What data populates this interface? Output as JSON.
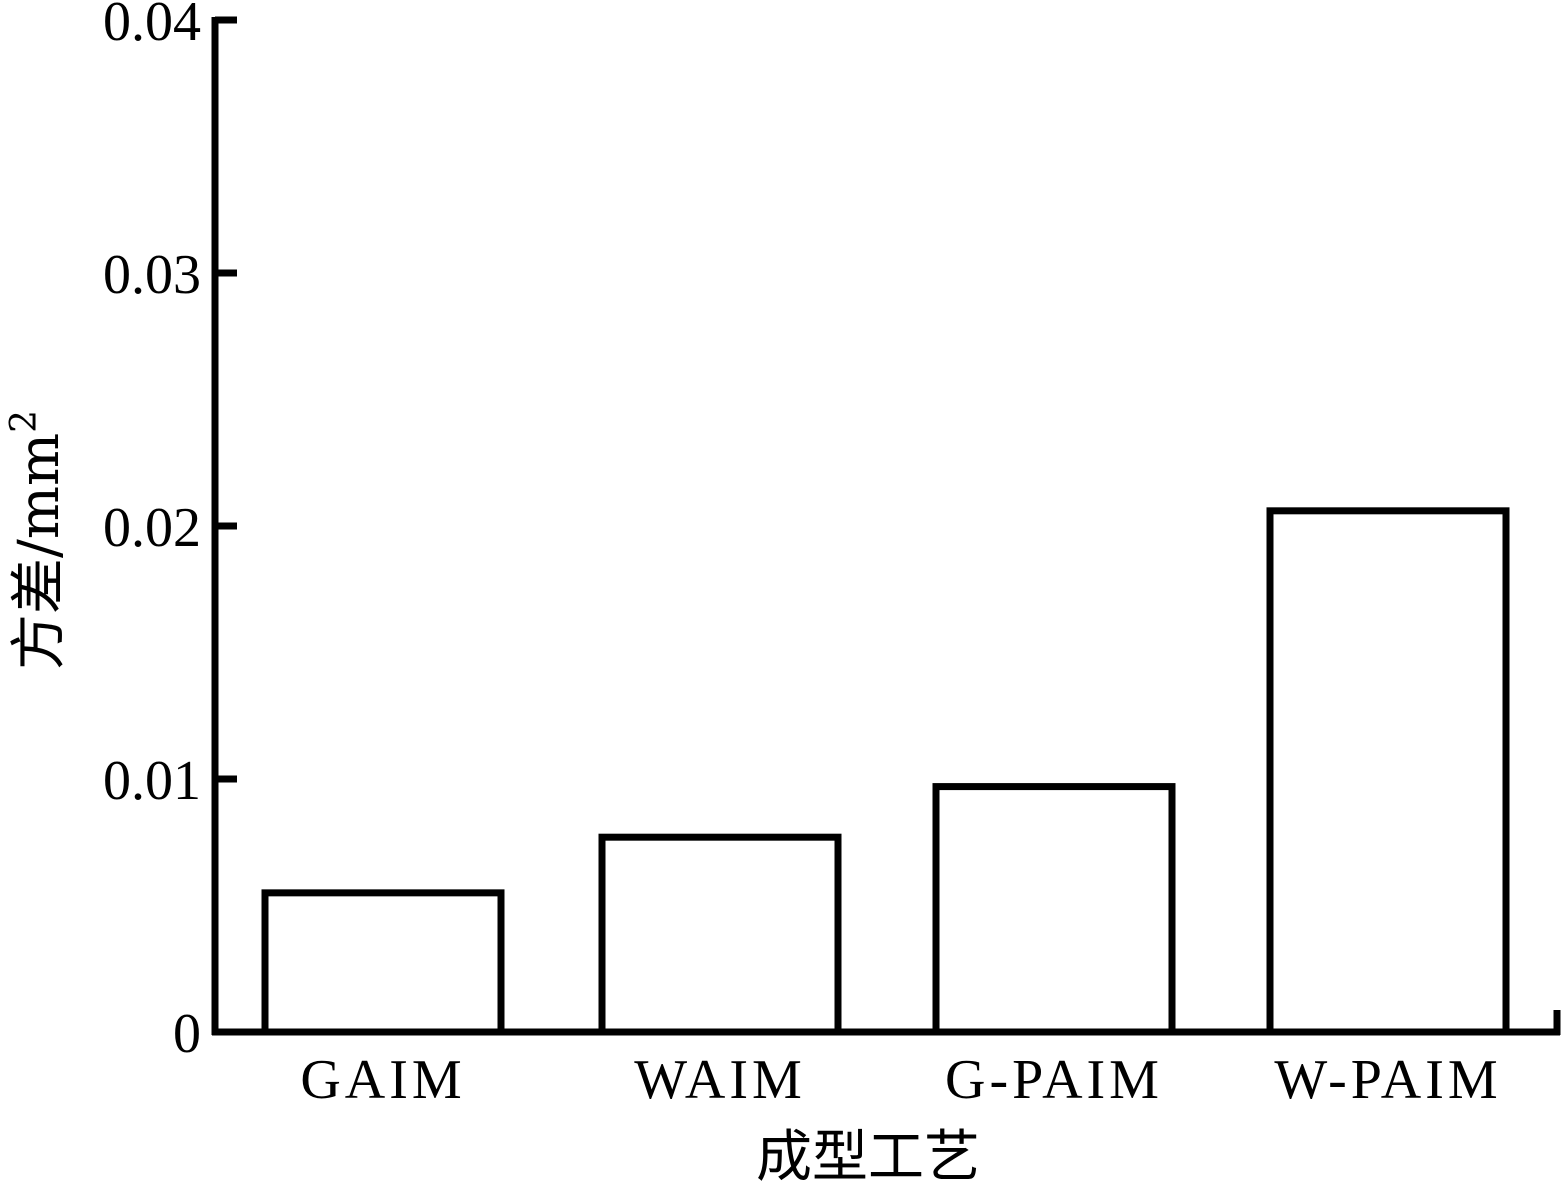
{
  "chart_data": {
    "type": "bar",
    "categories": [
      "GAIM",
      "WAIM",
      "G-PAIM",
      "W-PAIM"
    ],
    "values": [
      0.0055,
      0.0077,
      0.0097,
      0.0206
    ],
    "xlabel": "成型工艺",
    "ylabel": "方差/mm",
    "ylabel_superscript": "2",
    "ylim": [
      0,
      0.04
    ],
    "yticks": [
      0,
      0.01,
      0.02,
      0.03,
      0.04
    ],
    "ytick_labels": [
      "0",
      "0.01",
      "0.02",
      "0.03",
      "0.04"
    ],
    "grid": false,
    "bar_fill": "#ffffff",
    "bar_stroke": "#000000"
  }
}
